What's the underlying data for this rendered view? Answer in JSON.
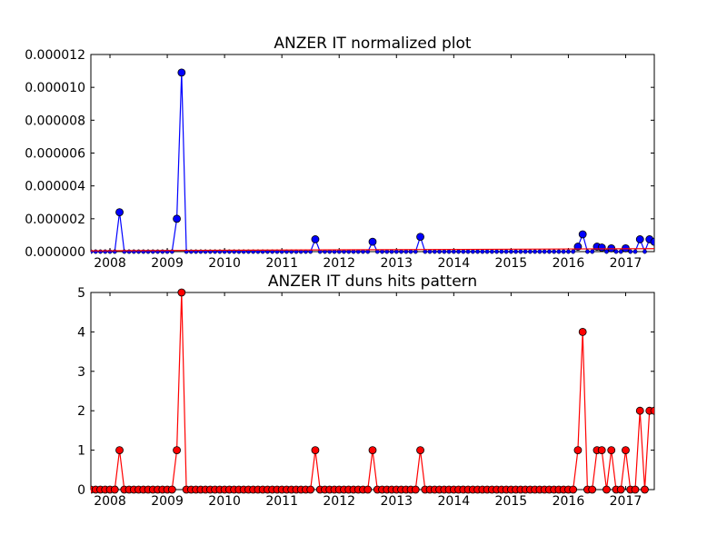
{
  "chart_data": [
    {
      "type": "line",
      "title": "ANZER IT normalized plot",
      "xlabel": "",
      "ylabel": "",
      "x_ticks": [
        "2008",
        "2009",
        "2010",
        "2011",
        "2012",
        "2013",
        "2014",
        "2015",
        "2016",
        "2017"
      ],
      "y_ticks": [
        "0.000000",
        "0.000002",
        "0.000004",
        "0.000006",
        "0.000008",
        "0.000010",
        "0.000012"
      ],
      "xlim": [
        "2007-09",
        "2017-07"
      ],
      "ylim": [
        0,
        1.2e-05
      ],
      "grid": false,
      "series": [
        {
          "color": "#0000ff",
          "points": [
            [
              "2008-03",
              2.4e-06
            ],
            [
              "2009-03",
              2e-06
            ],
            [
              "2009-04",
              1.09e-05
            ],
            [
              "2011-08",
              7.5e-07
            ],
            [
              "2012-08",
              6e-07
            ],
            [
              "2013-06",
              9e-07
            ],
            [
              "2016-03",
              3e-07
            ],
            [
              "2016-04",
              1.05e-06
            ],
            [
              "2016-07",
              3e-07
            ],
            [
              "2016-08",
              2.5e-07
            ],
            [
              "2016-10",
              2e-07
            ],
            [
              "2017-01",
              2e-07
            ],
            [
              "2017-04",
              7.5e-07
            ],
            [
              "2017-06",
              7.5e-07
            ],
            [
              "2017-07",
              6e-07
            ]
          ]
        },
        {
          "color": "#ff0000",
          "points": [
            [
              "2007-09",
              5e-08
            ],
            [
              "2017-07",
              1.8e-07
            ]
          ]
        }
      ]
    },
    {
      "type": "line",
      "title": "ANZER IT duns hits pattern",
      "xlabel": "",
      "ylabel": "",
      "x_ticks": [
        "2008",
        "2009",
        "2010",
        "2011",
        "2012",
        "2013",
        "2014",
        "2015",
        "2016",
        "2017"
      ],
      "y_ticks": [
        "0",
        "1",
        "2",
        "3",
        "4",
        "5"
      ],
      "xlim": [
        "2007-09",
        "2017-07"
      ],
      "ylim": [
        0,
        5
      ],
      "grid": false,
      "series": [
        {
          "color": "#ff0000",
          "points": [
            [
              "2008-03",
              1
            ],
            [
              "2009-03",
              1
            ],
            [
              "2009-04",
              5
            ],
            [
              "2011-08",
              1
            ],
            [
              "2012-08",
              1
            ],
            [
              "2013-06",
              1
            ],
            [
              "2016-03",
              1
            ],
            [
              "2016-04",
              4
            ],
            [
              "2016-07",
              1
            ],
            [
              "2016-08",
              1
            ],
            [
              "2016-10",
              1
            ],
            [
              "2017-01",
              1
            ],
            [
              "2017-04",
              2
            ],
            [
              "2017-06",
              2
            ],
            [
              "2017-07",
              2
            ]
          ]
        }
      ]
    }
  ]
}
